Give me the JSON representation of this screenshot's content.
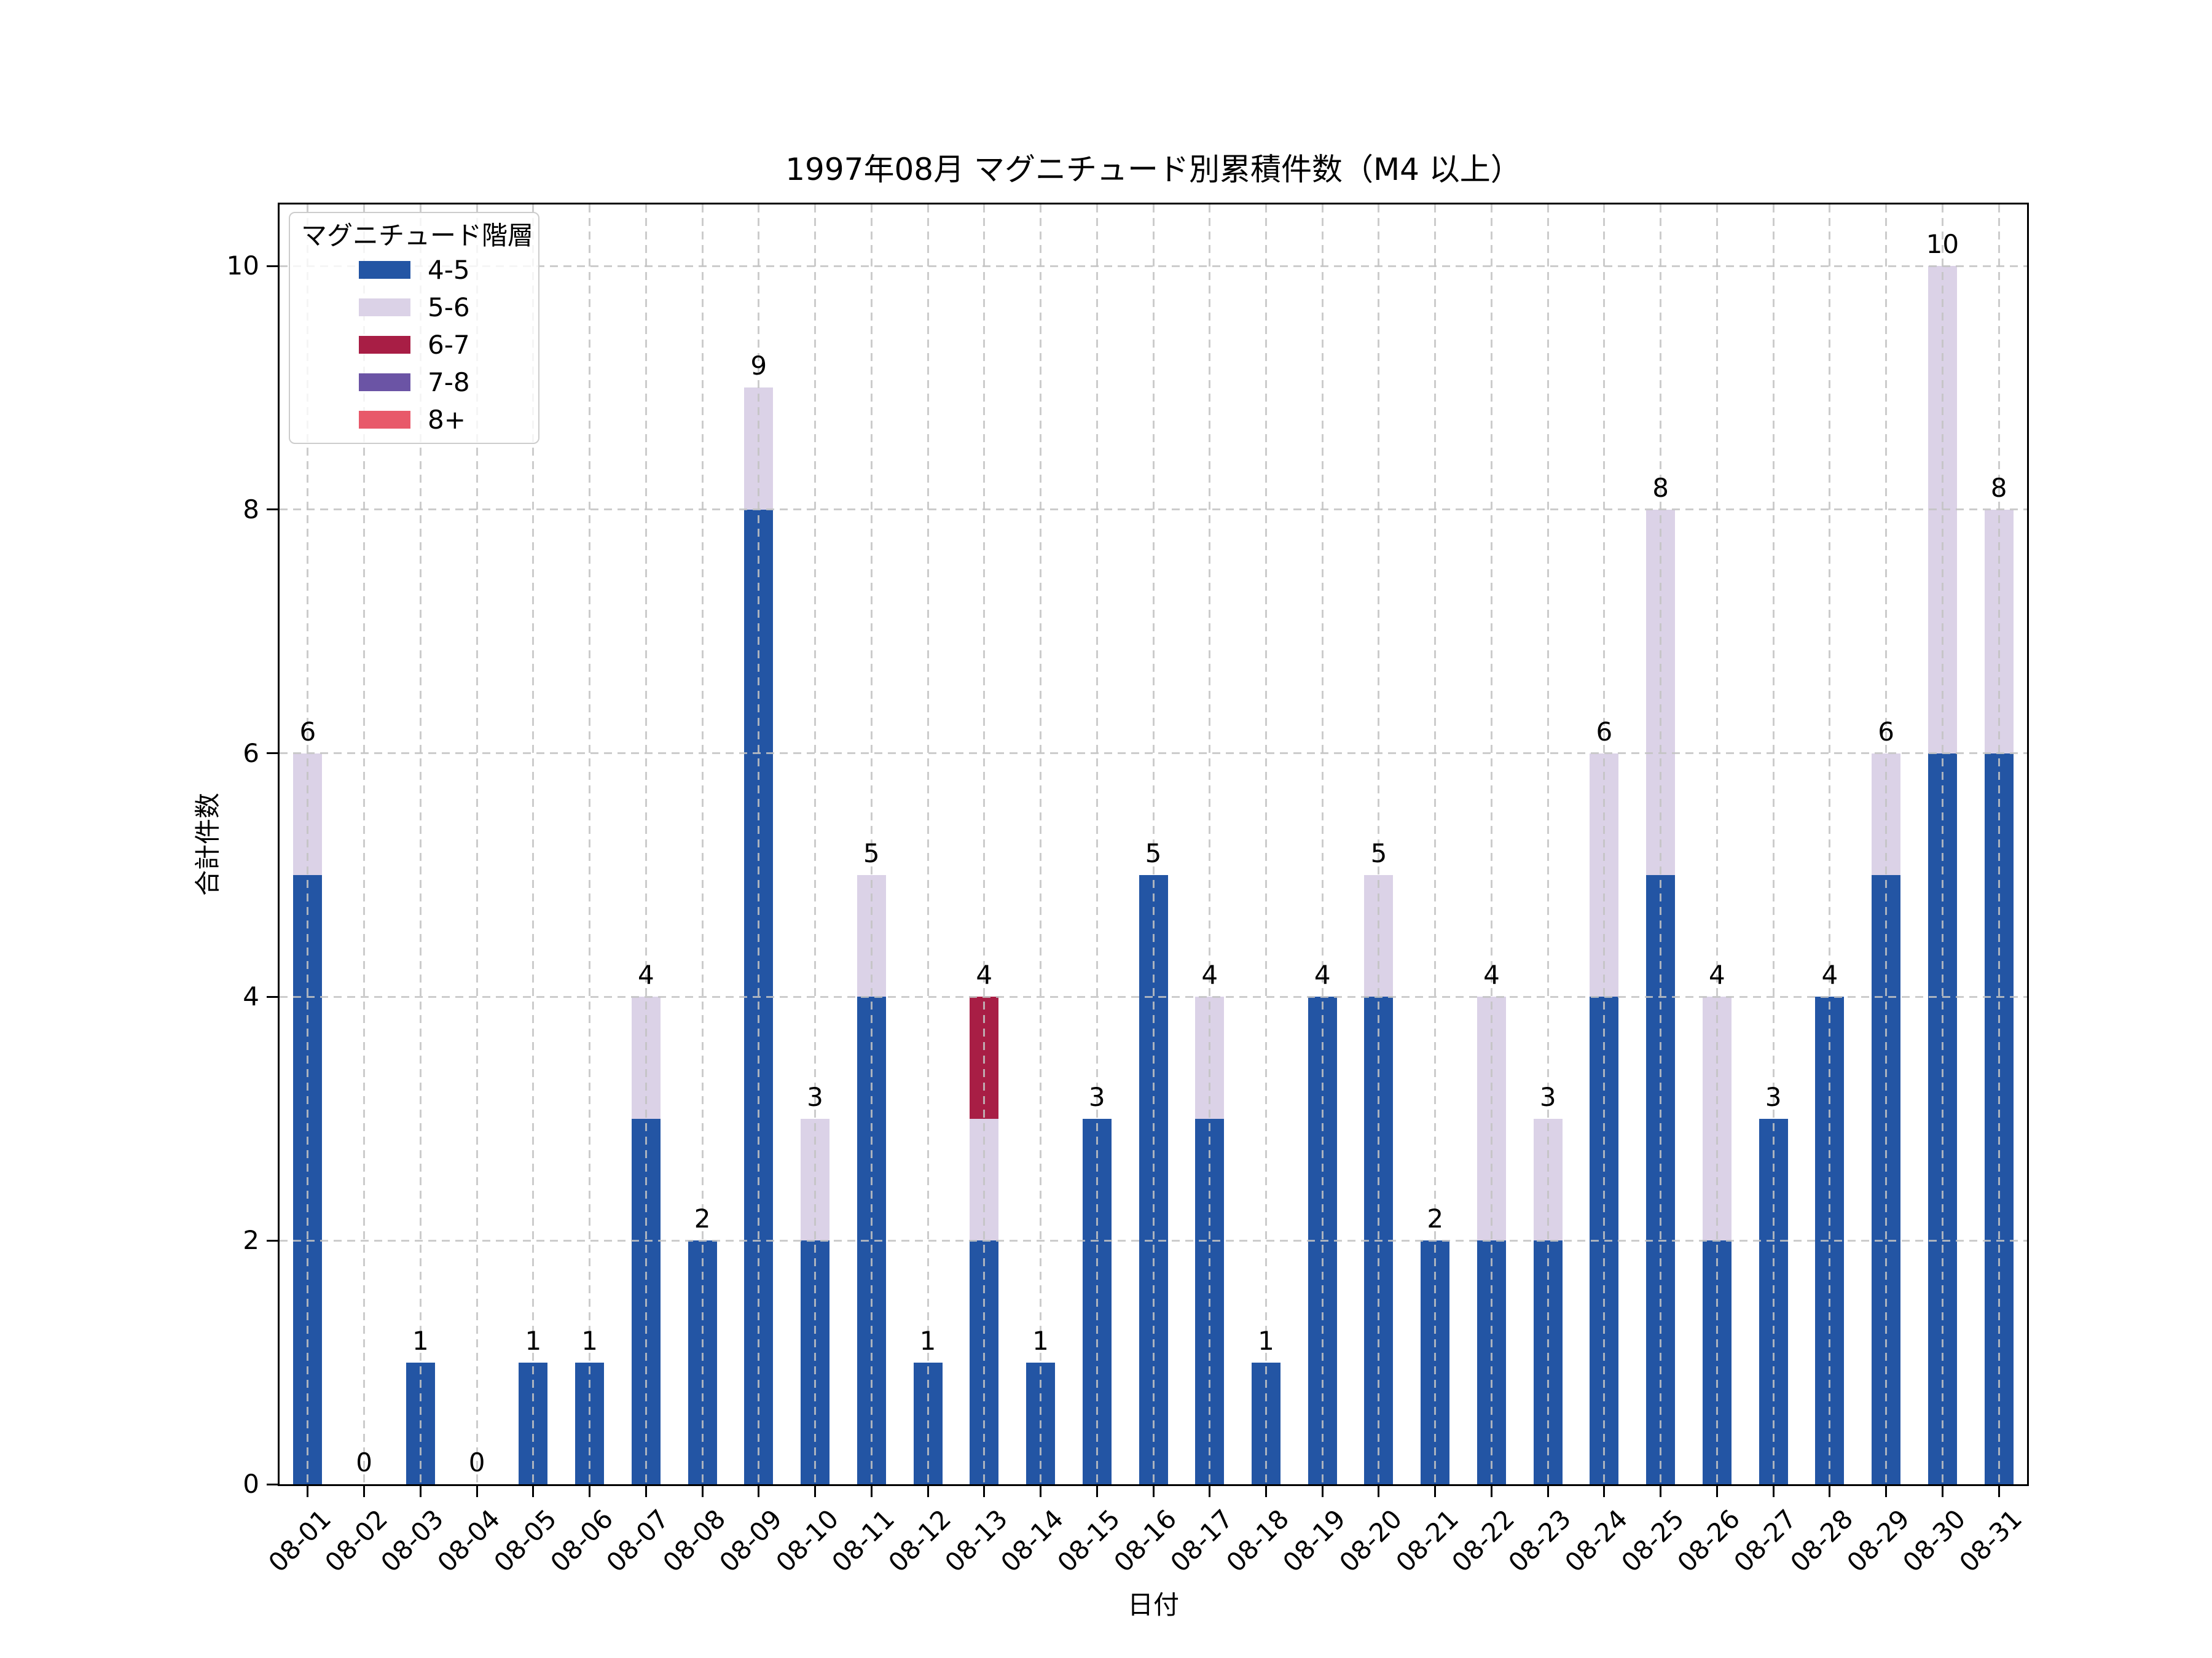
{
  "title": "1997年08月 マグニチュード別累積件数（M4 以上）",
  "axes": {
    "x_label": "日付",
    "y_label": "合計件数",
    "y_ticks": [
      0,
      2,
      4,
      6,
      8,
      10
    ]
  },
  "legend": {
    "title": "マグニチュード階層"
  },
  "chart_data": {
    "type": "bar",
    "stacked": true,
    "title": "1997年08月 マグニチュード別累積件数（M4 以上）",
    "xlabel": "日付",
    "ylabel": "合計件数",
    "ylim": [
      0,
      10.5
    ],
    "grid": true,
    "grid_style": "dashed",
    "legend_position": "upper left",
    "categories": [
      "08-01",
      "08-02",
      "08-03",
      "08-04",
      "08-05",
      "08-06",
      "08-07",
      "08-08",
      "08-09",
      "08-10",
      "08-11",
      "08-12",
      "08-13",
      "08-14",
      "08-15",
      "08-16",
      "08-17",
      "08-18",
      "08-19",
      "08-20",
      "08-21",
      "08-22",
      "08-23",
      "08-24",
      "08-25",
      "08-26",
      "08-27",
      "08-28",
      "08-29",
      "08-30",
      "08-31"
    ],
    "series": [
      {
        "name": "4-5",
        "color": "#2355a4",
        "values": [
          5,
          0,
          1,
          0,
          1,
          1,
          3,
          2,
          8,
          2,
          4,
          1,
          2,
          1,
          3,
          5,
          3,
          1,
          4,
          4,
          2,
          2,
          2,
          4,
          5,
          2,
          3,
          4,
          5,
          6,
          6
        ]
      },
      {
        "name": "5-6",
        "color": "#dbd2e7",
        "values": [
          1,
          0,
          0,
          0,
          0,
          0,
          1,
          0,
          1,
          1,
          1,
          0,
          1,
          0,
          0,
          0,
          1,
          0,
          0,
          1,
          0,
          2,
          1,
          2,
          3,
          2,
          0,
          0,
          1,
          4,
          2
        ]
      },
      {
        "name": "6-7",
        "color": "#a81e45",
        "values": [
          0,
          0,
          0,
          0,
          0,
          0,
          0,
          0,
          0,
          0,
          0,
          0,
          1,
          0,
          0,
          0,
          0,
          0,
          0,
          0,
          0,
          0,
          0,
          0,
          0,
          0,
          0,
          0,
          0,
          0,
          0
        ]
      },
      {
        "name": "7-8",
        "color": "#6b54a5",
        "values": [
          0,
          0,
          0,
          0,
          0,
          0,
          0,
          0,
          0,
          0,
          0,
          0,
          0,
          0,
          0,
          0,
          0,
          0,
          0,
          0,
          0,
          0,
          0,
          0,
          0,
          0,
          0,
          0,
          0,
          0,
          0
        ]
      },
      {
        "name": "8+",
        "color": "#e8596a",
        "values": [
          0,
          0,
          0,
          0,
          0,
          0,
          0,
          0,
          0,
          0,
          0,
          0,
          0,
          0,
          0,
          0,
          0,
          0,
          0,
          0,
          0,
          0,
          0,
          0,
          0,
          0,
          0,
          0,
          0,
          0,
          0
        ]
      }
    ],
    "bar_labels": [
      6,
      0,
      1,
      0,
      1,
      1,
      4,
      2,
      9,
      3,
      5,
      1,
      4,
      1,
      3,
      5,
      4,
      1,
      4,
      5,
      2,
      4,
      3,
      6,
      8,
      4,
      3,
      4,
      6,
      10,
      8
    ]
  }
}
